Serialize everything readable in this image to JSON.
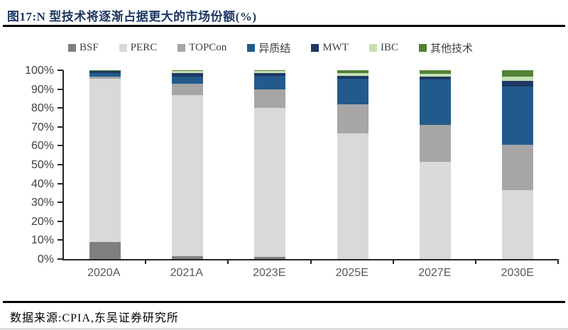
{
  "header": {
    "title": "图17:N 型技术将逐渐占据更大的市场份额(%)"
  },
  "footer": {
    "source": "数据来源:CPIA,东吴证券研究所"
  },
  "colors": {
    "title": "#1F3864",
    "axis": "#262626",
    "y_label": "#404040",
    "x_label": "#595959"
  },
  "chart_data": {
    "type": "bar",
    "stacked": true,
    "title": "图17:N 型技术将逐渐占据更大的市场份额(%)",
    "xlabel": "",
    "ylabel": "",
    "ylim": [
      0,
      100
    ],
    "ytick_labels_top_to_bottom": [
      "100%",
      "90%",
      "80%",
      "70%",
      "60%",
      "50%",
      "40%",
      "30%",
      "20%",
      "10%",
      "0%"
    ],
    "grid": false,
    "legend_position": "top",
    "categories": [
      "2020A",
      "2021A",
      "2023E",
      "2025E",
      "2027E",
      "2030E"
    ],
    "series": [
      {
        "name": "BSF",
        "color": "#7F7F7F",
        "values": [
          9,
          1.5,
          1,
          0,
          0,
          0
        ]
      },
      {
        "name": "PERC",
        "color": "#D9D9D9",
        "values": [
          86.5,
          85.5,
          79,
          66.5,
          51.5,
          36.5
        ]
      },
      {
        "name": "TOPCon",
        "color": "#A6A6A6",
        "values": [
          1,
          6,
          10,
          15.5,
          19.5,
          24
        ]
      },
      {
        "name": "异质结",
        "color": "#235A8C",
        "values": [
          2,
          3.5,
          7,
          13.5,
          24,
          31
        ]
      },
      {
        "name": "MWT",
        "color": "#1F3864",
        "values": [
          1,
          2,
          1.5,
          1.5,
          1.5,
          3
        ]
      },
      {
        "name": "IBC",
        "color": "#C5E0B4",
        "values": [
          0.2,
          1,
          1,
          1.5,
          1.5,
          2
        ]
      },
      {
        "name": "其他技术",
        "color": "#538135",
        "values": [
          0.3,
          0.5,
          0.5,
          1.5,
          2,
          3.5
        ]
      }
    ]
  }
}
